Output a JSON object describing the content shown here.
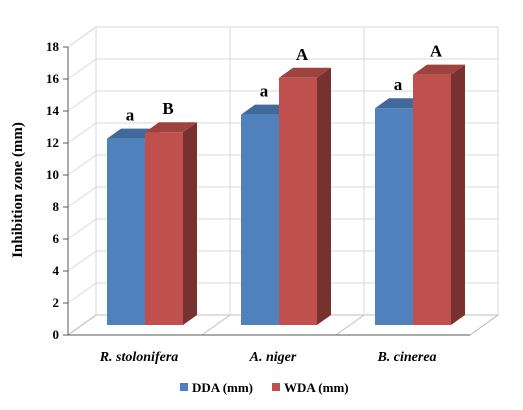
{
  "chart_data": {
    "type": "bar",
    "ylabel": "Inhibition  zone (mm)",
    "categories": [
      "R. stolonifera",
      "A. niger",
      "B. cinerea"
    ],
    "ylim": [
      0,
      18
    ],
    "yticks": [
      0,
      2,
      4,
      6,
      8,
      10,
      12,
      14,
      16,
      18
    ],
    "grid": true,
    "legend_position": "bottom",
    "series": [
      {
        "name": "DDA (mm)",
        "color": "#4f81bd",
        "values": [
          12.4,
          13.9,
          14.3
        ],
        "labels": [
          "a",
          "a",
          "a"
        ]
      },
      {
        "name": "WDA (mm)",
        "color": "#c0504d",
        "values": [
          12.8,
          16.2,
          16.4
        ],
        "labels": [
          "B",
          "A",
          "A"
        ]
      }
    ]
  }
}
